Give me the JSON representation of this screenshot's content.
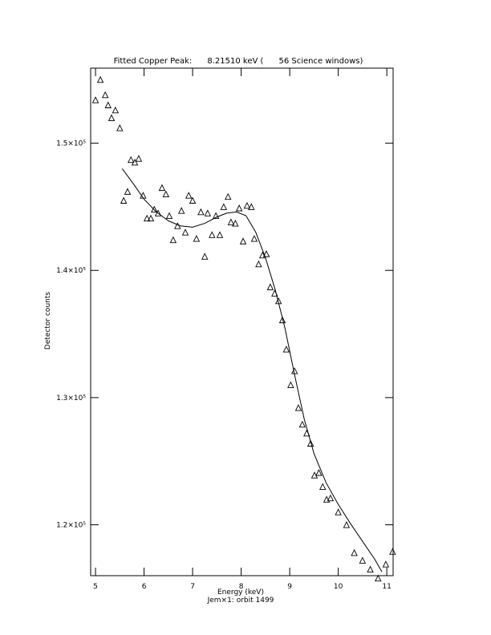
{
  "chart_data": {
    "type": "scatter",
    "title": "Fitted Copper Peak:      8.21510 keV (      56 Science windows)",
    "xlabel": "Energy (keV)",
    "subtitle": "Jem×1: orbit 1499",
    "ylabel": "Detector counts",
    "xlim": [
      4.9,
      11.13
    ],
    "ylim": [
      116000,
      155900
    ],
    "xticks": [
      5,
      6,
      7,
      8,
      9,
      10,
      11
    ],
    "yticks": [
      {
        "value": 120000,
        "label": "1.2×10⁵"
      },
      {
        "value": 130000,
        "label": "1.3×10⁵"
      },
      {
        "value": 140000,
        "label": "1.4×10⁵"
      },
      {
        "value": 150000,
        "label": "1.5×10⁵"
      }
    ],
    "color": "#000000",
    "x": [
      5.0,
      5.1,
      5.2,
      5.26,
      5.33,
      5.41,
      5.5,
      5.58,
      5.66,
      5.73,
      5.81,
      5.89,
      5.98,
      6.06,
      6.14,
      6.21,
      6.29,
      6.37,
      6.45,
      6.52,
      6.6,
      6.69,
      6.77,
      6.85,
      6.92,
      7.0,
      7.08,
      7.17,
      7.25,
      7.31,
      7.4,
      7.48,
      7.56,
      7.64,
      7.73,
      7.79,
      7.88,
      7.96,
      8.04,
      8.12,
      8.21,
      8.27,
      8.36,
      8.44,
      8.52,
      8.6,
      8.69,
      8.77,
      8.85,
      8.93,
      9.02,
      9.1,
      9.18,
      9.26,
      9.35,
      9.43,
      9.51,
      9.6,
      9.68,
      9.76,
      9.84,
      10.0,
      10.17,
      10.33,
      10.5,
      10.66,
      10.82,
      10.98,
      11.12
    ],
    "values": [
      153400,
      155000,
      153800,
      153000,
      152000,
      152600,
      151200,
      145500,
      146200,
      148700,
      148500,
      148800,
      145900,
      144100,
      144100,
      144800,
      144500,
      146500,
      146000,
      144300,
      142400,
      143500,
      144700,
      143000,
      145900,
      145500,
      142500,
      144600,
      141100,
      144500,
      142800,
      144300,
      142800,
      145000,
      145800,
      143800,
      143700,
      144900,
      142300,
      145100,
      145000,
      142500,
      140500,
      141200,
      141300,
      138700,
      138200,
      137600,
      136100,
      133800,
      131000,
      132100,
      129200,
      127900,
      127200,
      126400,
      123900,
      124100,
      123000,
      122000,
      122100,
      121000,
      120000,
      117800,
      117200,
      116500,
      115800,
      116900,
      117900
    ],
    "fit": {
      "x": [
        5.55,
        5.8,
        6.0,
        6.25,
        6.5,
        6.75,
        7.0,
        7.25,
        7.5,
        7.7,
        7.9,
        8.1,
        8.3,
        8.5,
        8.7,
        8.9,
        9.1,
        9.3,
        9.5,
        9.75,
        10.0,
        10.25,
        10.5,
        10.75,
        10.9
      ],
      "values": [
        148000,
        146700,
        145600,
        144600,
        143900,
        143500,
        143400,
        143700,
        144200,
        144500,
        144600,
        144300,
        143000,
        141000,
        138500,
        135500,
        131800,
        128300,
        125600,
        123300,
        121600,
        120100,
        118700,
        117300,
        116300
      ]
    }
  }
}
